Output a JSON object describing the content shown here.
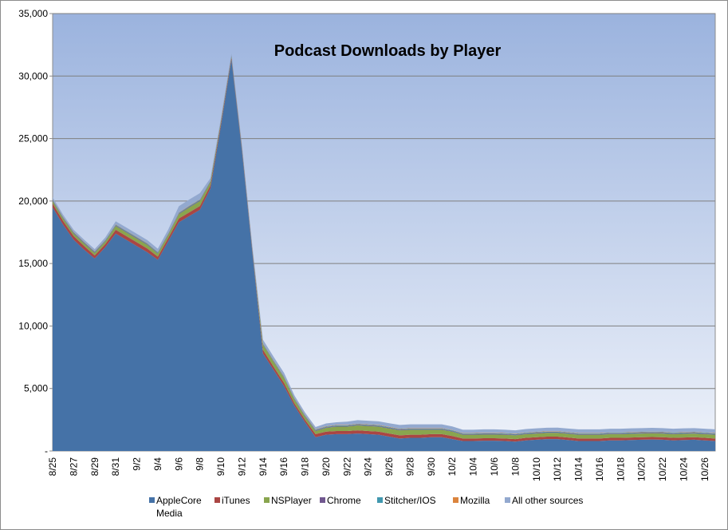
{
  "chart_data": {
    "type": "area",
    "stacked": true,
    "title": "Podcast Downloads by Player",
    "xlabel": "",
    "ylabel": "",
    "ylim": [
      0,
      35000
    ],
    "y_ticks": [
      "-",
      "5,000",
      "10,000",
      "15,000",
      "20,000",
      "25,000",
      "30,000",
      "35,000"
    ],
    "y_tick_values": [
      0,
      5000,
      10000,
      15000,
      20000,
      25000,
      30000,
      35000
    ],
    "x_tick_labels": [
      "8/25",
      "8/27",
      "8/29",
      "8/31",
      "9/2",
      "9/4",
      "9/6",
      "9/8",
      "9/10",
      "9/12",
      "9/14",
      "9/16",
      "9/18",
      "9/20",
      "9/22",
      "9/24",
      "9/26",
      "9/28",
      "9/30",
      "10/2",
      "10/4",
      "10/6",
      "10/8",
      "10/10",
      "10/12",
      "10/14",
      "10/16",
      "10/18",
      "10/20",
      "10/22",
      "10/24",
      "10/26"
    ],
    "grid": "horizontal",
    "legend_position": "bottom",
    "categories": [
      "8/25",
      "8/26",
      "8/27",
      "8/28",
      "8/29",
      "8/30",
      "8/31",
      "9/1",
      "9/2",
      "9/3",
      "9/4",
      "9/5",
      "9/6",
      "9/7",
      "9/8",
      "9/9",
      "9/10",
      "9/11",
      "9/12",
      "9/13",
      "9/14",
      "9/15",
      "9/16",
      "9/17",
      "9/18",
      "9/19",
      "9/20",
      "9/21",
      "9/22",
      "9/23",
      "9/24",
      "9/25",
      "9/26",
      "9/27",
      "9/28",
      "9/29",
      "9/30",
      "10/1",
      "10/2",
      "10/3",
      "10/4",
      "10/5",
      "10/6",
      "10/7",
      "10/8",
      "10/9",
      "10/10",
      "10/11",
      "10/12",
      "10/13",
      "10/14",
      "10/15",
      "10/16",
      "10/17",
      "10/18",
      "10/19",
      "10/20",
      "10/21",
      "10/22",
      "10/23",
      "10/24",
      "10/25",
      "10/26",
      "10/27"
    ],
    "series": [
      {
        "name": "AppleCore Media",
        "color": "#4572a7",
        "values": [
          19500,
          18100,
          16900,
          16100,
          15400,
          16300,
          17400,
          16900,
          16400,
          15900,
          15300,
          16800,
          18300,
          18800,
          19300,
          21000,
          26000,
          31300,
          24000,
          15800,
          7800,
          6500,
          5200,
          3600,
          2300,
          1100,
          1300,
          1350,
          1350,
          1400,
          1350,
          1300,
          1150,
          1000,
          1050,
          1050,
          1100,
          1100,
          950,
          800,
          800,
          820,
          820,
          800,
          750,
          850,
          900,
          950,
          950,
          880,
          800,
          800,
          800,
          850,
          850,
          880,
          900,
          920,
          900,
          850,
          880,
          900,
          850,
          800
        ]
      },
      {
        "name": "iTunes",
        "color": "#aa4643",
        "values": [
          300,
          300,
          300,
          300,
          250,
          250,
          300,
          300,
          300,
          300,
          250,
          250,
          300,
          300,
          300,
          250,
          200,
          150,
          150,
          150,
          300,
          250,
          250,
          200,
          200,
          250,
          250,
          250,
          250,
          250,
          250,
          250,
          250,
          250,
          250,
          250,
          250,
          250,
          250,
          200,
          200,
          200,
          200,
          200,
          200,
          200,
          200,
          200,
          200,
          200,
          200,
          200,
          200,
          200,
          200,
          200,
          200,
          200,
          200,
          200,
          200,
          200,
          200,
          200
        ]
      },
      {
        "name": "NSPlayer",
        "color": "#89a54e",
        "values": [
          200,
          200,
          200,
          200,
          200,
          200,
          300,
          300,
          300,
          300,
          250,
          250,
          350,
          400,
          400,
          250,
          150,
          100,
          100,
          100,
          400,
          400,
          400,
          300,
          250,
          250,
          300,
          350,
          350,
          400,
          400,
          400,
          400,
          400,
          400,
          400,
          350,
          350,
          350,
          300,
          300,
          300,
          300,
          300,
          300,
          300,
          300,
          300,
          300,
          300,
          300,
          300,
          300,
          300,
          300,
          300,
          300,
          300,
          300,
          300,
          300,
          300,
          300,
          300
        ]
      },
      {
        "name": "Chrome",
        "color": "#71588f",
        "values": [
          50,
          50,
          50,
          50,
          50,
          50,
          50,
          50,
          50,
          50,
          50,
          50,
          50,
          50,
          50,
          50,
          50,
          50,
          50,
          50,
          50,
          50,
          50,
          50,
          50,
          50,
          50,
          50,
          50,
          50,
          50,
          50,
          50,
          50,
          50,
          50,
          50,
          50,
          50,
          50,
          50,
          50,
          50,
          50,
          50,
          50,
          50,
          50,
          50,
          50,
          50,
          50,
          50,
          50,
          50,
          50,
          50,
          50,
          50,
          50,
          50,
          50,
          50,
          50
        ]
      },
      {
        "name": "Stitcher/IOS",
        "color": "#4198af",
        "values": [
          50,
          50,
          50,
          50,
          50,
          50,
          50,
          50,
          50,
          50,
          50,
          50,
          50,
          50,
          50,
          50,
          50,
          50,
          50,
          50,
          50,
          50,
          50,
          50,
          50,
          50,
          50,
          50,
          50,
          50,
          50,
          50,
          50,
          50,
          50,
          50,
          50,
          50,
          50,
          50,
          50,
          50,
          50,
          50,
          50,
          50,
          50,
          50,
          50,
          50,
          50,
          50,
          50,
          50,
          50,
          50,
          50,
          50,
          50,
          50,
          50,
          50,
          50,
          50
        ]
      },
      {
        "name": "Mozilla",
        "color": "#db843d",
        "values": [
          30,
          30,
          30,
          30,
          30,
          30,
          30,
          30,
          30,
          30,
          30,
          30,
          30,
          30,
          30,
          30,
          30,
          30,
          30,
          30,
          30,
          30,
          30,
          30,
          30,
          30,
          30,
          30,
          30,
          30,
          30,
          30,
          30,
          30,
          30,
          30,
          30,
          30,
          30,
          30,
          30,
          30,
          30,
          30,
          30,
          30,
          30,
          30,
          30,
          30,
          30,
          30,
          30,
          30,
          30,
          30,
          30,
          30,
          30,
          30,
          30,
          30,
          30,
          30
        ]
      },
      {
        "name": "All other sources",
        "color": "#93a9cf",
        "values": [
          170,
          170,
          170,
          170,
          170,
          200,
          250,
          250,
          250,
          250,
          250,
          300,
          500,
          500,
          500,
          200,
          150,
          150,
          150,
          150,
          270,
          270,
          270,
          200,
          190,
          190,
          220,
          220,
          270,
          290,
          290,
          290,
          290,
          300,
          300,
          300,
          300,
          300,
          280,
          270,
          270,
          280,
          280,
          270,
          270,
          280,
          280,
          280,
          290,
          290,
          300,
          300,
          300,
          300,
          300,
          300,
          300,
          300,
          300,
          300,
          300,
          300,
          300,
          300
        ]
      }
    ]
  },
  "legend": {
    "items": [
      {
        "label": "AppleCore",
        "label2": "Media"
      },
      {
        "label": "iTunes"
      },
      {
        "label": "NSPlayer"
      },
      {
        "label": "Chrome"
      },
      {
        "label": "Stitcher/IOS"
      },
      {
        "label": "Mozilla"
      },
      {
        "label": "All other sources"
      }
    ]
  }
}
